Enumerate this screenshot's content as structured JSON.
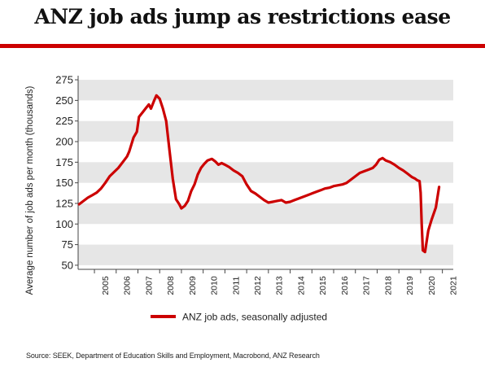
{
  "title": "ANZ job ads jump as restrictions ease",
  "source": "Source: SEEK, Department of Education Skills and Employment, Macrobond, ANZ Research",
  "colors": {
    "line": "#cc0000",
    "band": "#e6e6e6",
    "rule": "#cc0000",
    "text": "#222222"
  },
  "chart_data": {
    "type": "line",
    "title": "",
    "xlabel": "",
    "ylabel": "Average number of job ads per month (thousands)",
    "ylim": [
      45,
      280
    ],
    "xlim": [
      2004.25,
      2021.5
    ],
    "yticks": [
      "50",
      "75",
      "100",
      "125",
      "150",
      "175",
      "200",
      "225",
      "250",
      "275"
    ],
    "xticks": [
      "2005",
      "2006",
      "2007",
      "2008",
      "2009",
      "2010",
      "2011",
      "2012",
      "2013",
      "2014",
      "2015",
      "2016",
      "2017",
      "2018",
      "2019",
      "2020",
      "2021"
    ],
    "grid": "alternating horizontal bands",
    "legend_position": "bottom-center",
    "series": [
      {
        "name": "ANZ job ads, seasonally adjusted",
        "x": [
          2004.3,
          2004.5,
          2004.7,
          2004.9,
          2005.1,
          2005.3,
          2005.5,
          2005.7,
          2005.9,
          2006.1,
          2006.3,
          2006.5,
          2006.6,
          2006.8,
          2006.95,
          2007.05,
          2007.2,
          2007.35,
          2007.5,
          2007.6,
          2007.75,
          2007.85,
          2008.0,
          2008.15,
          2008.3,
          2008.45,
          2008.6,
          2008.75,
          2008.9,
          2009.0,
          2009.15,
          2009.3,
          2009.45,
          2009.6,
          2009.75,
          2009.9,
          2010.05,
          2010.2,
          2010.4,
          2010.55,
          2010.7,
          2010.85,
          2011.0,
          2011.2,
          2011.4,
          2011.6,
          2011.8,
          2012.0,
          2012.2,
          2012.4,
          2012.6,
          2012.8,
          2013.0,
          2013.2,
          2013.4,
          2013.6,
          2013.8,
          2014.0,
          2014.2,
          2014.4,
          2014.6,
          2014.8,
          2015.0,
          2015.2,
          2015.4,
          2015.6,
          2015.8,
          2016.0,
          2016.2,
          2016.4,
          2016.6,
          2016.8,
          2017.0,
          2017.2,
          2017.4,
          2017.6,
          2017.8,
          2017.95,
          2018.1,
          2018.25,
          2018.4,
          2018.6,
          2018.8,
          2019.0,
          2019.2,
          2019.4,
          2019.6,
          2019.75,
          2019.85,
          2019.95,
          2020.0,
          2020.05,
          2020.1,
          2020.2,
          2020.35,
          2020.5,
          2020.7,
          2020.85
        ],
        "values": [
          124,
          128,
          132,
          135,
          138,
          143,
          150,
          158,
          163,
          168,
          175,
          182,
          188,
          205,
          212,
          230,
          235,
          240,
          245,
          240,
          250,
          256,
          252,
          240,
          225,
          190,
          155,
          130,
          124,
          119,
          122,
          128,
          140,
          148,
          160,
          168,
          173,
          177,
          179,
          176,
          172,
          174,
          172,
          169,
          165,
          162,
          158,
          148,
          140,
          137,
          133,
          129,
          126,
          127,
          128,
          129,
          126,
          127,
          129,
          131,
          133,
          135,
          137,
          139,
          141,
          143,
          144,
          146,
          147,
          148,
          150,
          154,
          158,
          162,
          164,
          166,
          168,
          172,
          178,
          180,
          177,
          175,
          172,
          168,
          165,
          161,
          157,
          155,
          153,
          152,
          138,
          100,
          68,
          66,
          92,
          105,
          120,
          145
        ]
      }
    ]
  }
}
